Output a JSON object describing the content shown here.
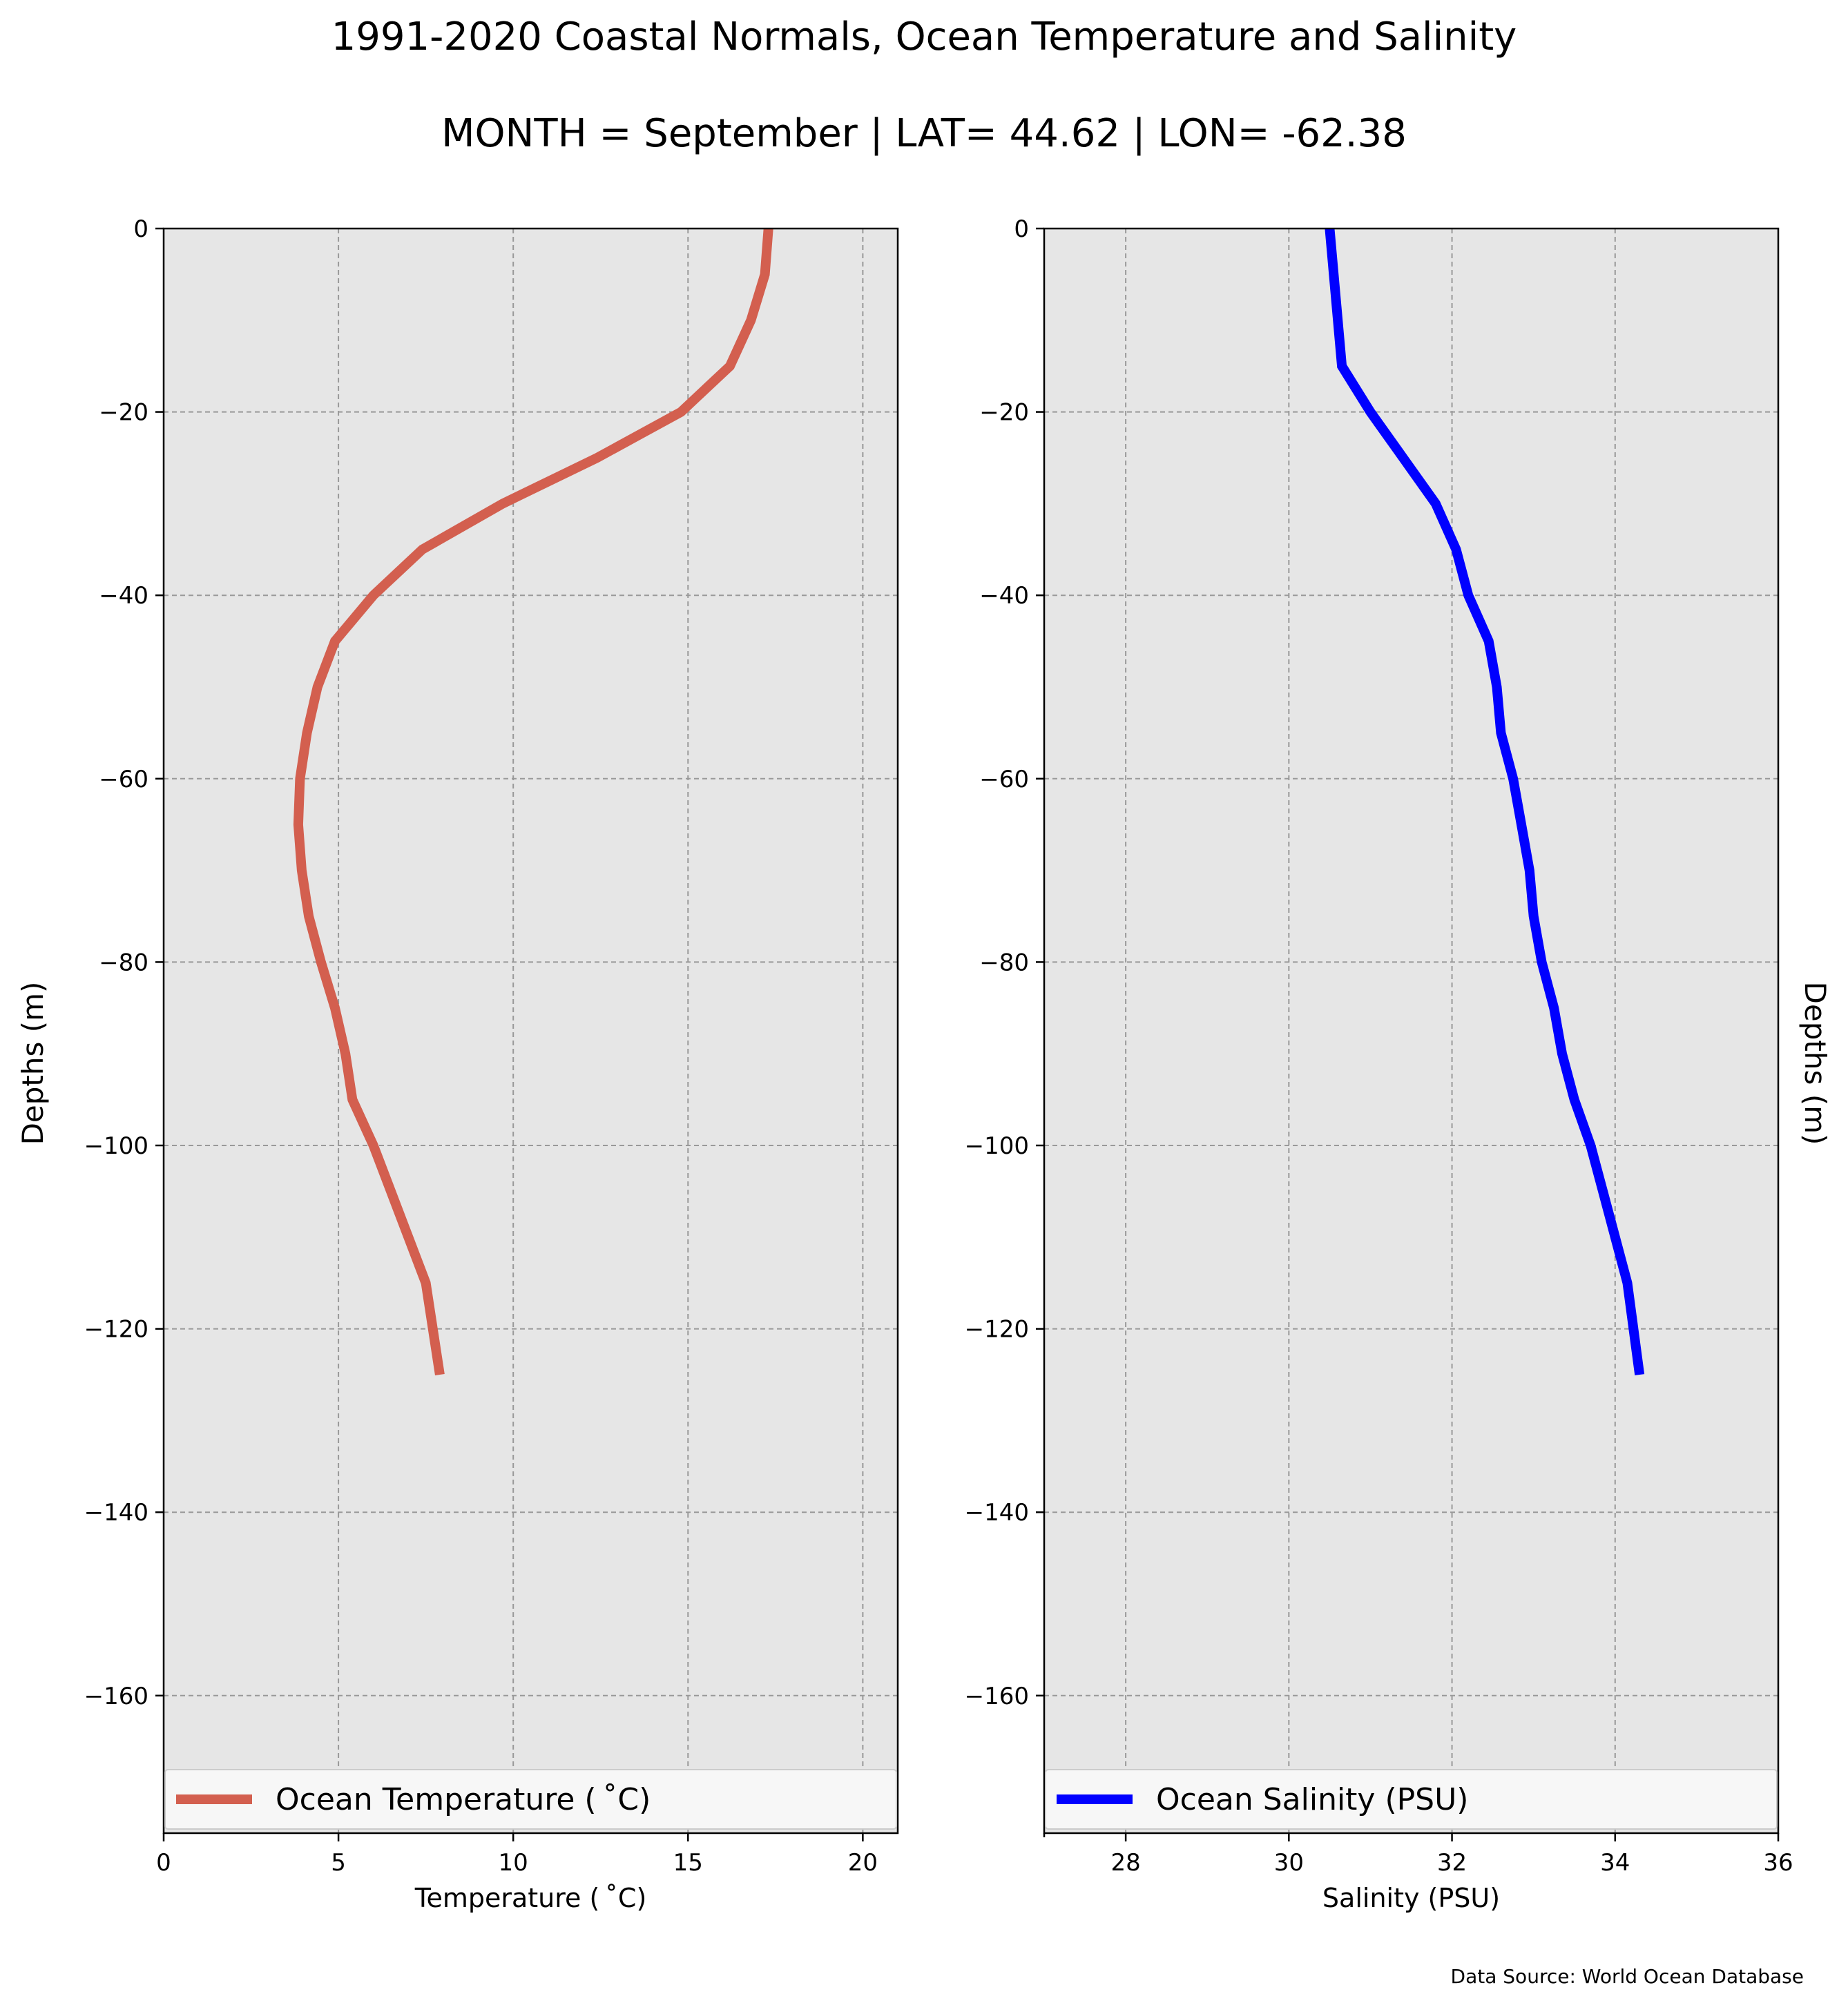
{
  "figure": {
    "title": "1991-2020 Coastal Normals, Ocean Temperature and Salinity",
    "subtitle": "MONTH = September | LAT= 44.62 | LON= -62.38",
    "source": "Data Source: World Ocean Database"
  },
  "colors": {
    "temperature": "#d35f4f",
    "salinity": "#0000ff",
    "plot_background": "#e6e6e6",
    "grid": "#999999"
  },
  "chart_data": [
    {
      "type": "line",
      "xlabel": "Temperature ($^\\circ$C)",
      "xlabel_display": "Temperature ( ˚C)",
      "ylabel": "Depths (m)",
      "xlim": [
        0,
        21
      ],
      "ylim": [
        -175,
        0
      ],
      "x_ticks": [
        0,
        5,
        10,
        15,
        20
      ],
      "y_ticks": [
        0,
        -20,
        -40,
        -60,
        -80,
        -100,
        -120,
        -140,
        -160
      ],
      "y_tick_labels": [
        "0",
        "−20",
        "−40",
        "−60",
        "−80",
        "−100",
        "−120",
        "−140",
        "−160"
      ],
      "grid": true,
      "legend_position": "bottom",
      "series": [
        {
          "name": "Ocean Temperature ( ˚C)",
          "x": [
            17.3,
            17.2,
            16.8,
            16.2,
            14.8,
            12.4,
            9.7,
            7.4,
            6.0,
            4.9,
            4.4,
            4.1,
            3.9,
            3.85,
            3.95,
            4.15,
            4.5,
            4.9,
            5.2,
            5.4,
            6.0,
            6.5,
            7.0,
            7.5,
            7.9
          ],
          "y": [
            0,
            -5,
            -10,
            -15,
            -20,
            -25,
            -30,
            -35,
            -40,
            -45,
            -50,
            -55,
            -60,
            -65,
            -70,
            -75,
            -80,
            -85,
            -90,
            -95,
            -100,
            -105,
            -110,
            -115,
            -125
          ]
        }
      ]
    },
    {
      "type": "line",
      "xlabel": "Salinity (PSU)",
      "ylabel": "Depths (m)",
      "xlim": [
        27,
        36
      ],
      "ylim": [
        -175,
        0
      ],
      "x_ticks": [
        28,
        30,
        32,
        34,
        36
      ],
      "y_ticks": [
        0,
        -20,
        -40,
        -60,
        -80,
        -100,
        -120,
        -140,
        -160
      ],
      "y_tick_labels": [
        "0",
        "−20",
        "−40",
        "−60",
        "−80",
        "−100",
        "−120",
        "−140",
        "−160"
      ],
      "grid": true,
      "legend_position": "bottom",
      "series": [
        {
          "name": "Ocean Salinity (PSU)",
          "x": [
            30.5,
            30.55,
            30.6,
            30.65,
            31.0,
            31.4,
            31.8,
            32.05,
            32.2,
            32.45,
            32.55,
            32.6,
            32.75,
            32.85,
            32.95,
            33.0,
            33.1,
            33.25,
            33.35,
            33.5,
            33.7,
            33.85,
            34.0,
            34.15,
            34.3
          ],
          "y": [
            0,
            -5,
            -10,
            -15,
            -20,
            -25,
            -30,
            -35,
            -40,
            -45,
            -50,
            -55,
            -60,
            -65,
            -70,
            -75,
            -80,
            -85,
            -90,
            -95,
            -100,
            -105,
            -110,
            -115,
            -125
          ]
        }
      ]
    }
  ]
}
